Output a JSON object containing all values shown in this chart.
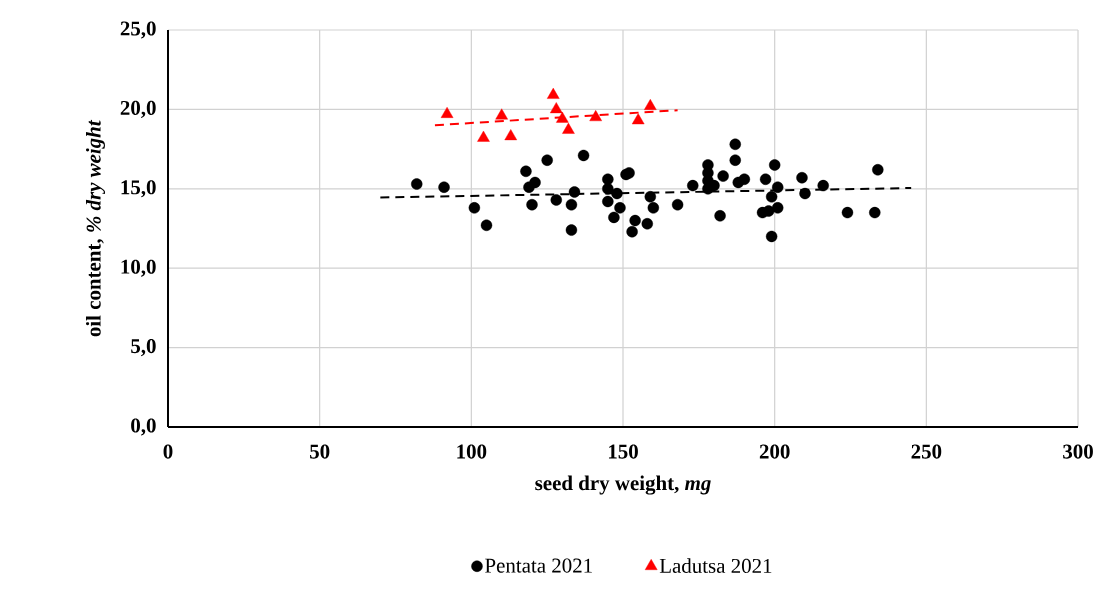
{
  "chart_data": {
    "type": "scatter",
    "xlabel": "seed dry weight, *mg*",
    "ylabel": "oil content, *% dry weight*",
    "xlim": [
      0,
      300
    ],
    "xticks": [
      0,
      50,
      100,
      150,
      200,
      250,
      300
    ],
    "ylim": [
      0,
      25
    ],
    "yticks": [
      {
        "value": 0,
        "label": "0,0"
      },
      {
        "value": 5,
        "label": "5,0"
      },
      {
        "value": 10,
        "label": "10,0"
      },
      {
        "value": 15,
        "label": "15,0"
      },
      {
        "value": 20,
        "label": "20,0"
      },
      {
        "value": 25,
        "label": "25,0"
      }
    ],
    "grid": true,
    "legend": "bottom",
    "series": [
      {
        "name": "Pentata 2021",
        "color": "#000000",
        "marker": "circle",
        "x": [
          82,
          91,
          101,
          105,
          118,
          119,
          120,
          121,
          125,
          128,
          133,
          133,
          134,
          137,
          145,
          145,
          145,
          147,
          148,
          149,
          151,
          152,
          153,
          154,
          158,
          159,
          160,
          168,
          173,
          178,
          178,
          178,
          178,
          180,
          182,
          183,
          187,
          187,
          188,
          190,
          196,
          197,
          198,
          199,
          199,
          200,
          201,
          201,
          209,
          210,
          216,
          224,
          233,
          234
        ],
        "values": [
          15.3,
          15.1,
          13.8,
          12.7,
          16.1,
          15.1,
          14.0,
          15.4,
          16.8,
          14.3,
          14.0,
          12.4,
          14.8,
          17.1,
          15.6,
          15.0,
          14.2,
          13.2,
          14.7,
          13.8,
          15.9,
          16.0,
          12.3,
          13.0,
          12.8,
          14.5,
          13.8,
          14.0,
          15.2,
          16.5,
          16.0,
          15.5,
          15.0,
          15.2,
          13.3,
          15.8,
          17.8,
          16.8,
          15.4,
          15.6,
          13.5,
          15.6,
          13.6,
          12.0,
          14.5,
          16.5,
          15.1,
          13.8,
          15.7,
          14.7,
          15.2,
          13.5,
          13.5,
          16.2
        ]
      },
      {
        "name": "Ladutsa 2021",
        "color": "#ff0000",
        "marker": "triangle",
        "x": [
          92,
          104,
          110,
          113,
          127,
          128,
          130,
          132,
          141,
          155,
          159
        ],
        "values": [
          19.7,
          18.2,
          19.6,
          18.3,
          20.9,
          20.0,
          19.4,
          18.7,
          19.5,
          19.3,
          20.2
        ]
      },
      {
        "type": "line",
        "color": "#000000",
        "line_style": "dashed",
        "x": [
          70,
          245
        ],
        "values": [
          14.45,
          15.05
        ]
      },
      {
        "type": "line",
        "color": "#ff0000",
        "line_style": "dashed",
        "x": [
          88,
          168
        ],
        "values": [
          19.0,
          19.95
        ]
      }
    ]
  }
}
